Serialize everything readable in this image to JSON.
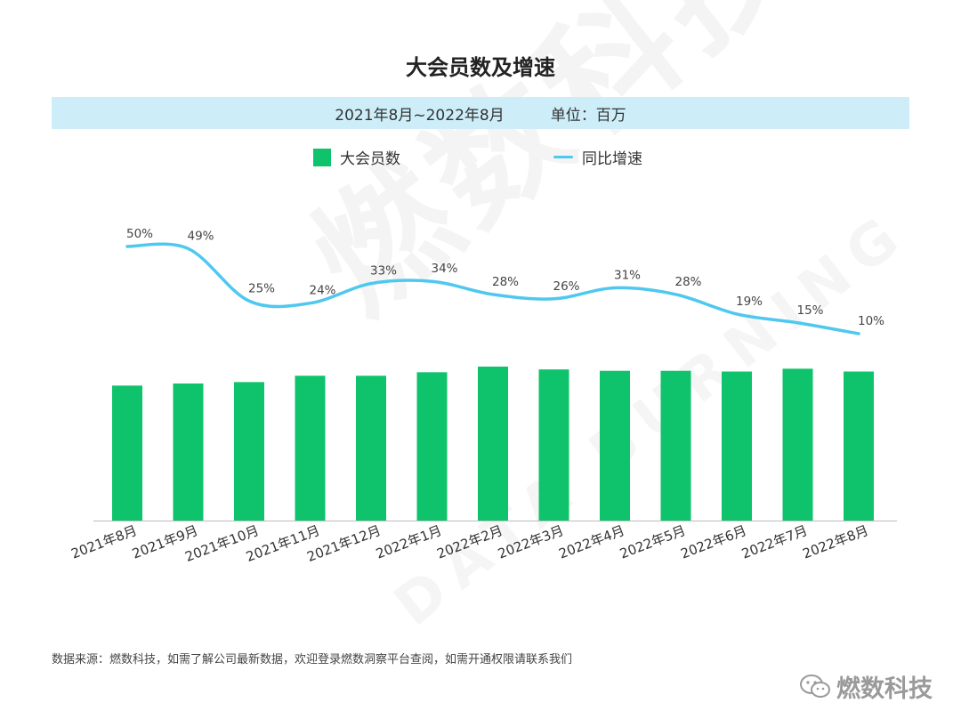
{
  "title": "大会员数及增速",
  "subtitle": {
    "period": "2021年8月~2022年8月",
    "unit": "单位：百万"
  },
  "legend": {
    "bar": "大会员数",
    "line": "同比增速"
  },
  "colors": {
    "bar": "#0fc36c",
    "line": "#4ec8ef",
    "subbar": "#cdeef9"
  },
  "watermark": {
    "main": "燃数科技",
    "sub": "DATA BURNING"
  },
  "source": "数据来源：燃数科技，如需了解公司最新数据，欢迎登录燃数洞察平台查阅，如需开通权限请联系我们",
  "logo": {
    "text": "燃数科技",
    "icon": "wechat-icon"
  },
  "chart_data": {
    "type": "bar",
    "categories": [
      "2021年8月",
      "2021年9月",
      "2021年10月",
      "2021年11月",
      "2021年12月",
      "2022年1月",
      "2022年2月",
      "2022年3月",
      "2022年4月",
      "2022年5月",
      "2022年6月",
      "2022年7月",
      "2022年8月"
    ],
    "series": [
      {
        "name": "大会员数",
        "type": "bar",
        "values": [
          19.2,
          19.5,
          19.7,
          20.6,
          20.6,
          21.1,
          21.9,
          21.5,
          21.3,
          21.3,
          21.2,
          21.6,
          21.2
        ]
      },
      {
        "name": "同比增速",
        "type": "line",
        "values": [
          50,
          49,
          25,
          24,
          33,
          34,
          28,
          26,
          31,
          28,
          19,
          15,
          10
        ],
        "value_labels": [
          "50%",
          "49%",
          "25%",
          "24%",
          "33%",
          "34%",
          "28%",
          "26%",
          "31%",
          "28%",
          "19%",
          "15%",
          "10%"
        ]
      }
    ],
    "title": "大会员数及增速",
    "xlabel": "",
    "ylabel": "",
    "grid": false,
    "legend_position": "top"
  }
}
